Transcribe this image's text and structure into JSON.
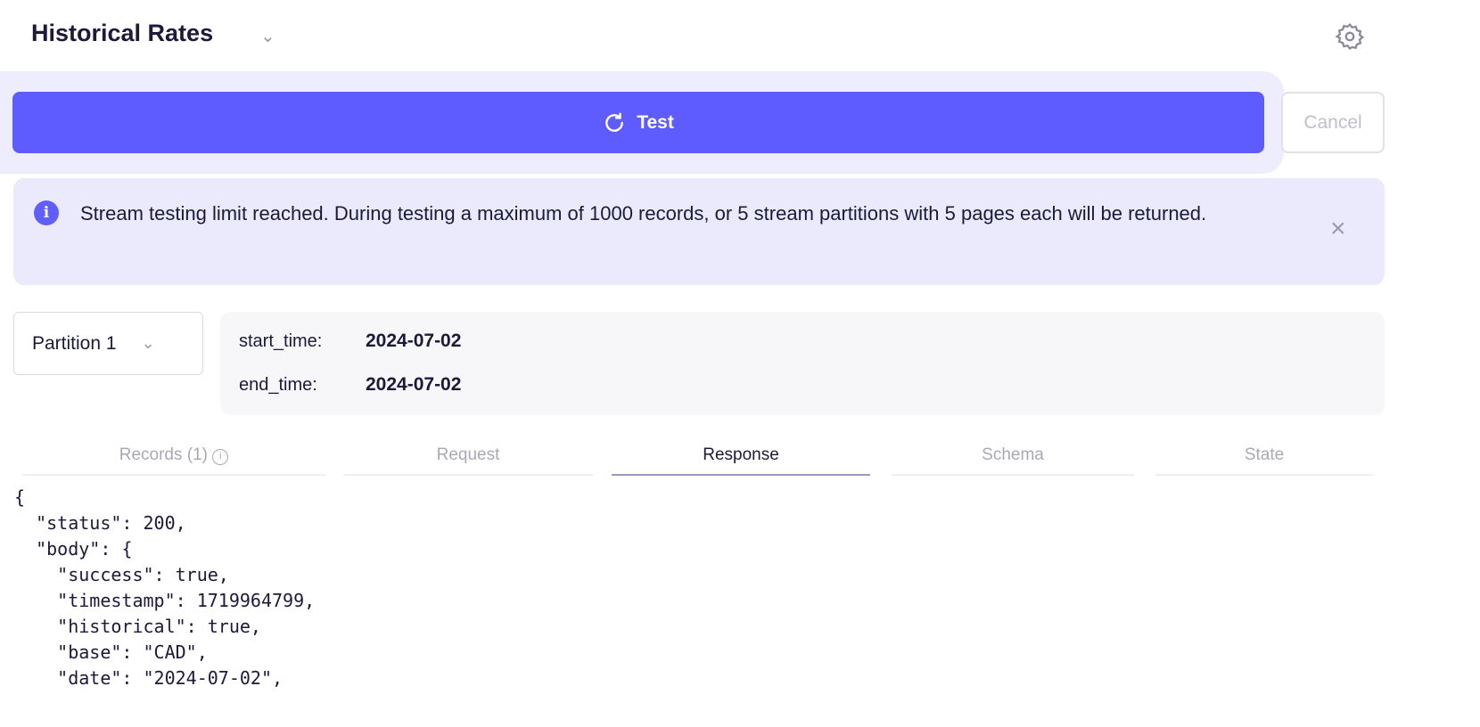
{
  "header": {
    "title": "Historical Rates",
    "settings_icon": "gear-icon"
  },
  "toolbar": {
    "test_label": "Test",
    "cancel_label": "Cancel",
    "accent": "#5f5cff"
  },
  "alert": {
    "text": "Stream testing limit reached. During testing a maximum of 1000 records, or 5 stream partitions with 5 pages each will be returned."
  },
  "partition": {
    "selected": "Partition 1"
  },
  "params": {
    "start_label": "start_time:",
    "start_value": "2024-07-02",
    "end_label": "end_time:",
    "end_value": "2024-07-02"
  },
  "tabs": [
    {
      "label": "Records (1)"
    },
    {
      "label": "Request"
    },
    {
      "label": "Response",
      "active": true
    },
    {
      "label": "Schema"
    },
    {
      "label": "State"
    }
  ],
  "response_lines": [
    "{",
    "  \"status\": 200,",
    "  \"body\": {",
    "    \"success\": true,",
    "    \"timestamp\": 1719964799,",
    "    \"historical\": true,",
    "    \"base\": \"CAD\",",
    "    \"date\": \"2024-07-02\","
  ]
}
